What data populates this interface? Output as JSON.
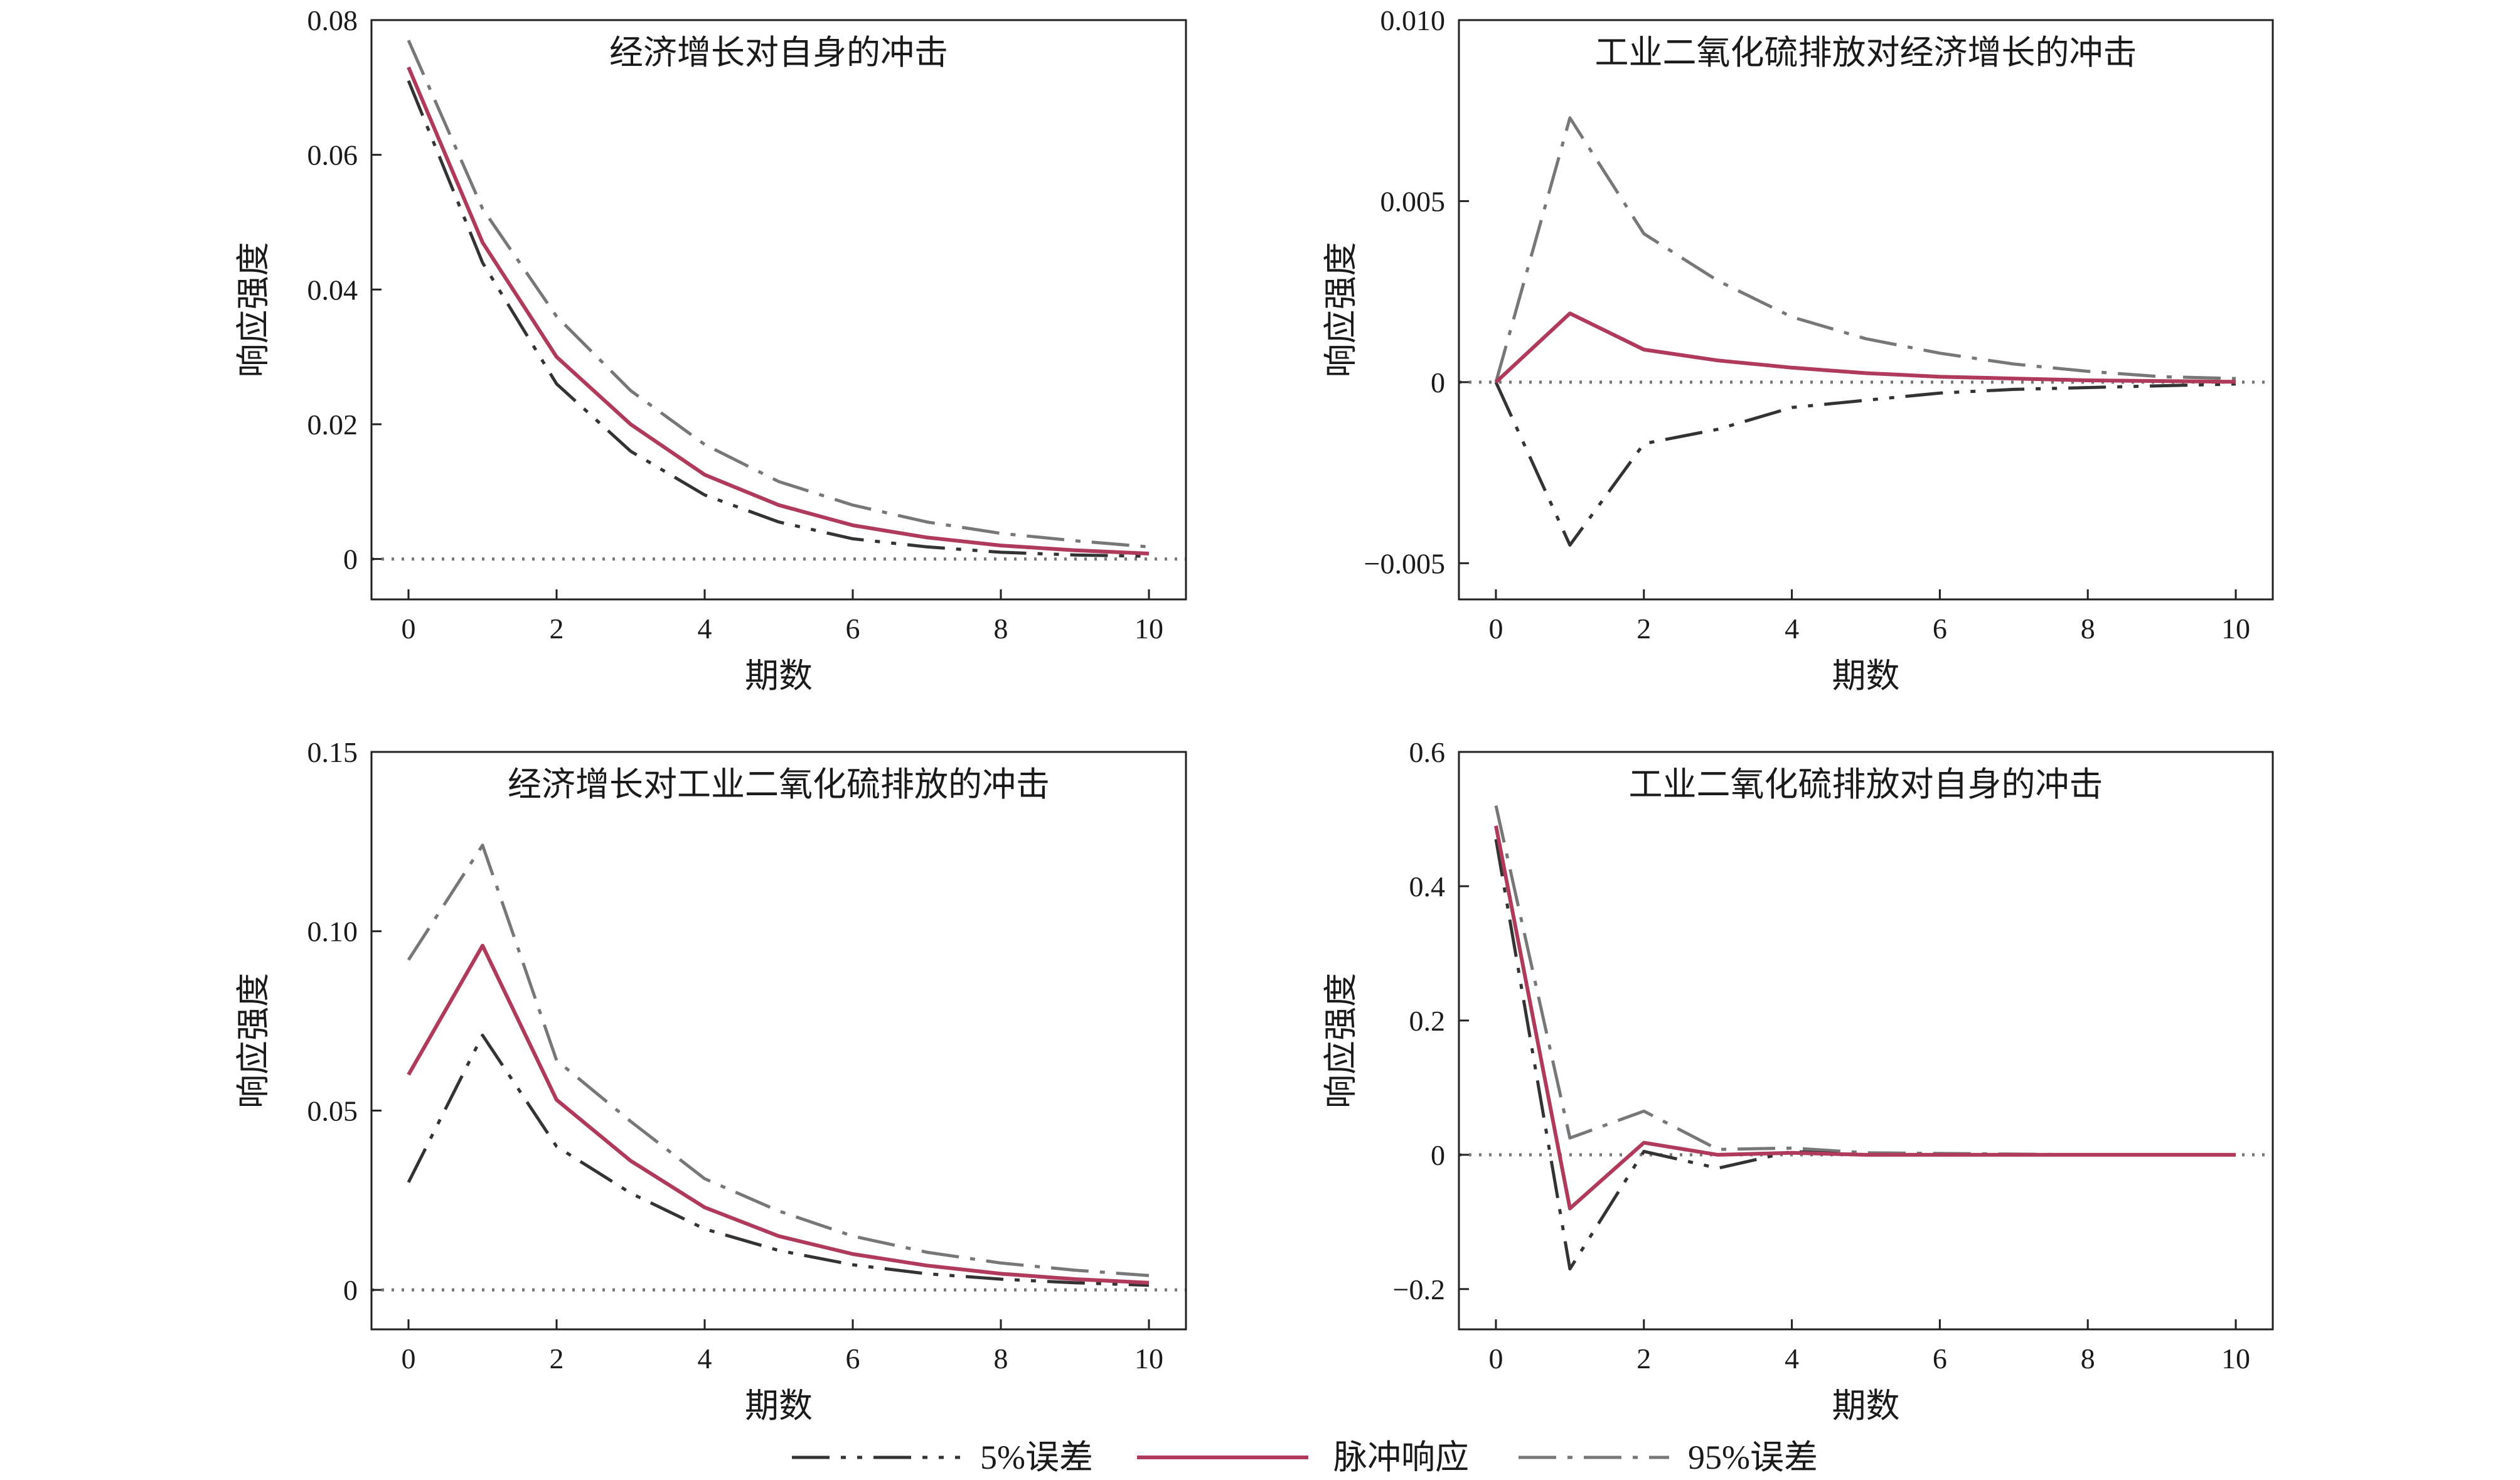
{
  "colors": {
    "impulse": "#b03a5b",
    "lower": "#333333",
    "upper": "#777777",
    "zero_line": "#777777",
    "frame": "#222222"
  },
  "legend": {
    "lower_label": "5%误差",
    "impulse_label": "脉冲响应",
    "upper_label": "95%误差"
  },
  "chart_data": [
    {
      "type": "line",
      "title": "经济增长对自身的冲击",
      "xlabel": "期数",
      "ylabel": "响应强度",
      "xlim": [
        -0.5,
        10.5
      ],
      "ylim": [
        -0.006,
        0.08
      ],
      "xticks": [
        0,
        2,
        4,
        6,
        8,
        10
      ],
      "yticks": [
        0,
        0.02,
        0.04,
        0.06,
        0.08
      ],
      "ytick_labels": [
        "0",
        "0.02",
        "0.04",
        "0.06",
        "0.08"
      ],
      "x": [
        0,
        1,
        2,
        3,
        4,
        5,
        6,
        7,
        8,
        9,
        10
      ],
      "series": [
        {
          "name": "5%误差",
          "role": "lower",
          "values": [
            0.071,
            0.044,
            0.026,
            0.016,
            0.0095,
            0.0055,
            0.003,
            0.0018,
            0.001,
            0.0006,
            0.0004
          ]
        },
        {
          "name": "脉冲响应",
          "role": "impulse",
          "values": [
            0.073,
            0.047,
            0.03,
            0.02,
            0.0125,
            0.008,
            0.005,
            0.0032,
            0.002,
            0.0013,
            0.0008
          ]
        },
        {
          "name": "95%误差",
          "role": "upper",
          "values": [
            0.077,
            0.052,
            0.036,
            0.025,
            0.017,
            0.0115,
            0.008,
            0.0055,
            0.0038,
            0.0027,
            0.0018
          ]
        }
      ]
    },
    {
      "type": "line",
      "title": "工业二氧化硫排放对经济增长的冲击",
      "xlabel": "期数",
      "ylabel": "响应强度",
      "xlim": [
        -0.5,
        10.5
      ],
      "ylim": [
        -0.006,
        0.01
      ],
      "xticks": [
        0,
        2,
        4,
        6,
        8,
        10
      ],
      "yticks": [
        -0.005,
        0,
        0.005,
        0.01
      ],
      "ytick_labels": [
        "−0.005",
        "0",
        "0.005",
        "0.010"
      ],
      "x": [
        0,
        1,
        2,
        3,
        4,
        5,
        6,
        7,
        8,
        9,
        10
      ],
      "series": [
        {
          "name": "5%误差",
          "role": "lower",
          "values": [
            0,
            -0.0045,
            -0.0017,
            -0.0013,
            -0.0007,
            -0.0005,
            -0.0003,
            -0.0002,
            -0.00015,
            -0.0001,
            -5e-05
          ]
        },
        {
          "name": "脉冲响应",
          "role": "impulse",
          "values": [
            0,
            0.0019,
            0.0009,
            0.0006,
            0.0004,
            0.00025,
            0.00015,
            0.0001,
            5e-05,
            3e-05,
            1e-05
          ]
        },
        {
          "name": "95%误差",
          "role": "upper",
          "values": [
            0,
            0.0073,
            0.0041,
            0.0028,
            0.0018,
            0.0012,
            0.0008,
            0.0005,
            0.0003,
            0.00015,
            0.0001
          ]
        }
      ]
    },
    {
      "type": "line",
      "title": "经济增长对工业二氧化硫排放的冲击",
      "xlabel": "期数",
      "ylabel": "响应强度",
      "xlim": [
        -0.5,
        10.5
      ],
      "ylim": [
        -0.011,
        0.15
      ],
      "xticks": [
        0,
        2,
        4,
        6,
        8,
        10
      ],
      "yticks": [
        0,
        0.05,
        0.1,
        0.15
      ],
      "ytick_labels": [
        "0",
        "0.05",
        "0.10",
        "0.15"
      ],
      "x": [
        0,
        1,
        2,
        3,
        4,
        5,
        6,
        7,
        8,
        9,
        10
      ],
      "series": [
        {
          "name": "5%误差",
          "role": "lower",
          "values": [
            0.03,
            0.071,
            0.04,
            0.027,
            0.017,
            0.011,
            0.007,
            0.0045,
            0.003,
            0.002,
            0.0013
          ]
        },
        {
          "name": "脉冲响应",
          "role": "impulse",
          "values": [
            0.06,
            0.096,
            0.053,
            0.036,
            0.023,
            0.015,
            0.01,
            0.0068,
            0.0045,
            0.003,
            0.002
          ]
        },
        {
          "name": "95%误差",
          "role": "upper",
          "values": [
            0.092,
            0.124,
            0.064,
            0.047,
            0.031,
            0.022,
            0.015,
            0.0105,
            0.0075,
            0.0055,
            0.004
          ]
        }
      ]
    },
    {
      "type": "line",
      "title": "工业二氧化硫排放对自身的冲击",
      "xlabel": "期数",
      "ylabel": "响应强度",
      "xlim": [
        -0.5,
        10.5
      ],
      "ylim": [
        -0.26,
        0.6
      ],
      "xticks": [
        0,
        2,
        4,
        6,
        8,
        10
      ],
      "yticks": [
        -0.2,
        0,
        0.2,
        0.4,
        0.6
      ],
      "ytick_labels": [
        "−0.2",
        "0",
        "0.2",
        "0.4",
        "0.6"
      ],
      "x": [
        0,
        1,
        2,
        3,
        4,
        5,
        6,
        7,
        8,
        9,
        10
      ],
      "series": [
        {
          "name": "5%误差",
          "role": "lower",
          "values": [
            0.47,
            -0.17,
            0.005,
            -0.02,
            0.005,
            0.0,
            0.0,
            0.0,
            0.0,
            0.0,
            0.0
          ]
        },
        {
          "name": "脉冲响应",
          "role": "impulse",
          "values": [
            0.49,
            -0.08,
            0.018,
            0.0,
            0.003,
            0.0,
            0.0,
            0.0,
            0.0,
            0.0,
            0.0
          ]
        },
        {
          "name": "95%误差",
          "role": "upper",
          "values": [
            0.52,
            0.025,
            0.065,
            0.008,
            0.01,
            0.003,
            0.002,
            0.001,
            0.0,
            0.0,
            0.0
          ]
        }
      ]
    }
  ]
}
